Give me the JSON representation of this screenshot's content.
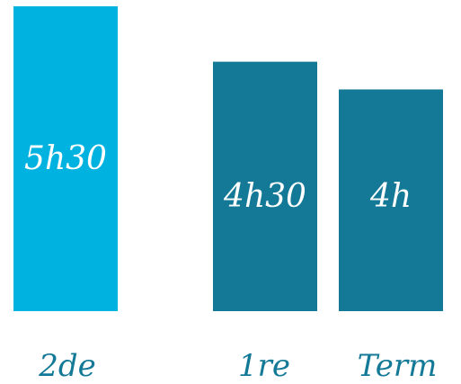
{
  "chart_data": {
    "type": "bar",
    "categories": [
      "2de",
      "1re",
      "Term"
    ],
    "values": [
      5.5,
      4.5,
      4
    ],
    "data_labels": [
      "5h30",
      "4h30",
      "4h"
    ],
    "colors": [
      "#00b2e0",
      "#137996",
      "#137996"
    ],
    "category_label_color": "#137996",
    "value_label_color": "#ffffff",
    "title": "",
    "xlabel": "",
    "ylabel": "",
    "ylim": [
      0,
      5.5
    ],
    "grid": false,
    "legend": "none"
  }
}
